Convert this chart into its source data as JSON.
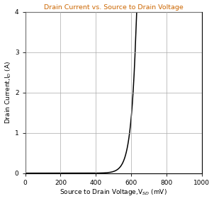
{
  "title": "Drain Current vs. Source to Drain Voltage",
  "xlabel": "Source to Drain Voltage,V$_{SD}$ (mV)",
  "ylabel": "Drain Current,I$_D$ (A)",
  "xlim": [
    0,
    1000
  ],
  "ylim": [
    0,
    4
  ],
  "xticks": [
    0,
    200,
    400,
    600,
    800,
    1000
  ],
  "yticks": [
    0,
    1,
    2,
    3,
    4
  ],
  "line_color": "#000000",
  "background_color": "#ffffff",
  "title_color": "#cc6600",
  "grid_color": "#aaaaaa",
  "curve_I0": 1e-09,
  "curve_Vt": 28.5
}
